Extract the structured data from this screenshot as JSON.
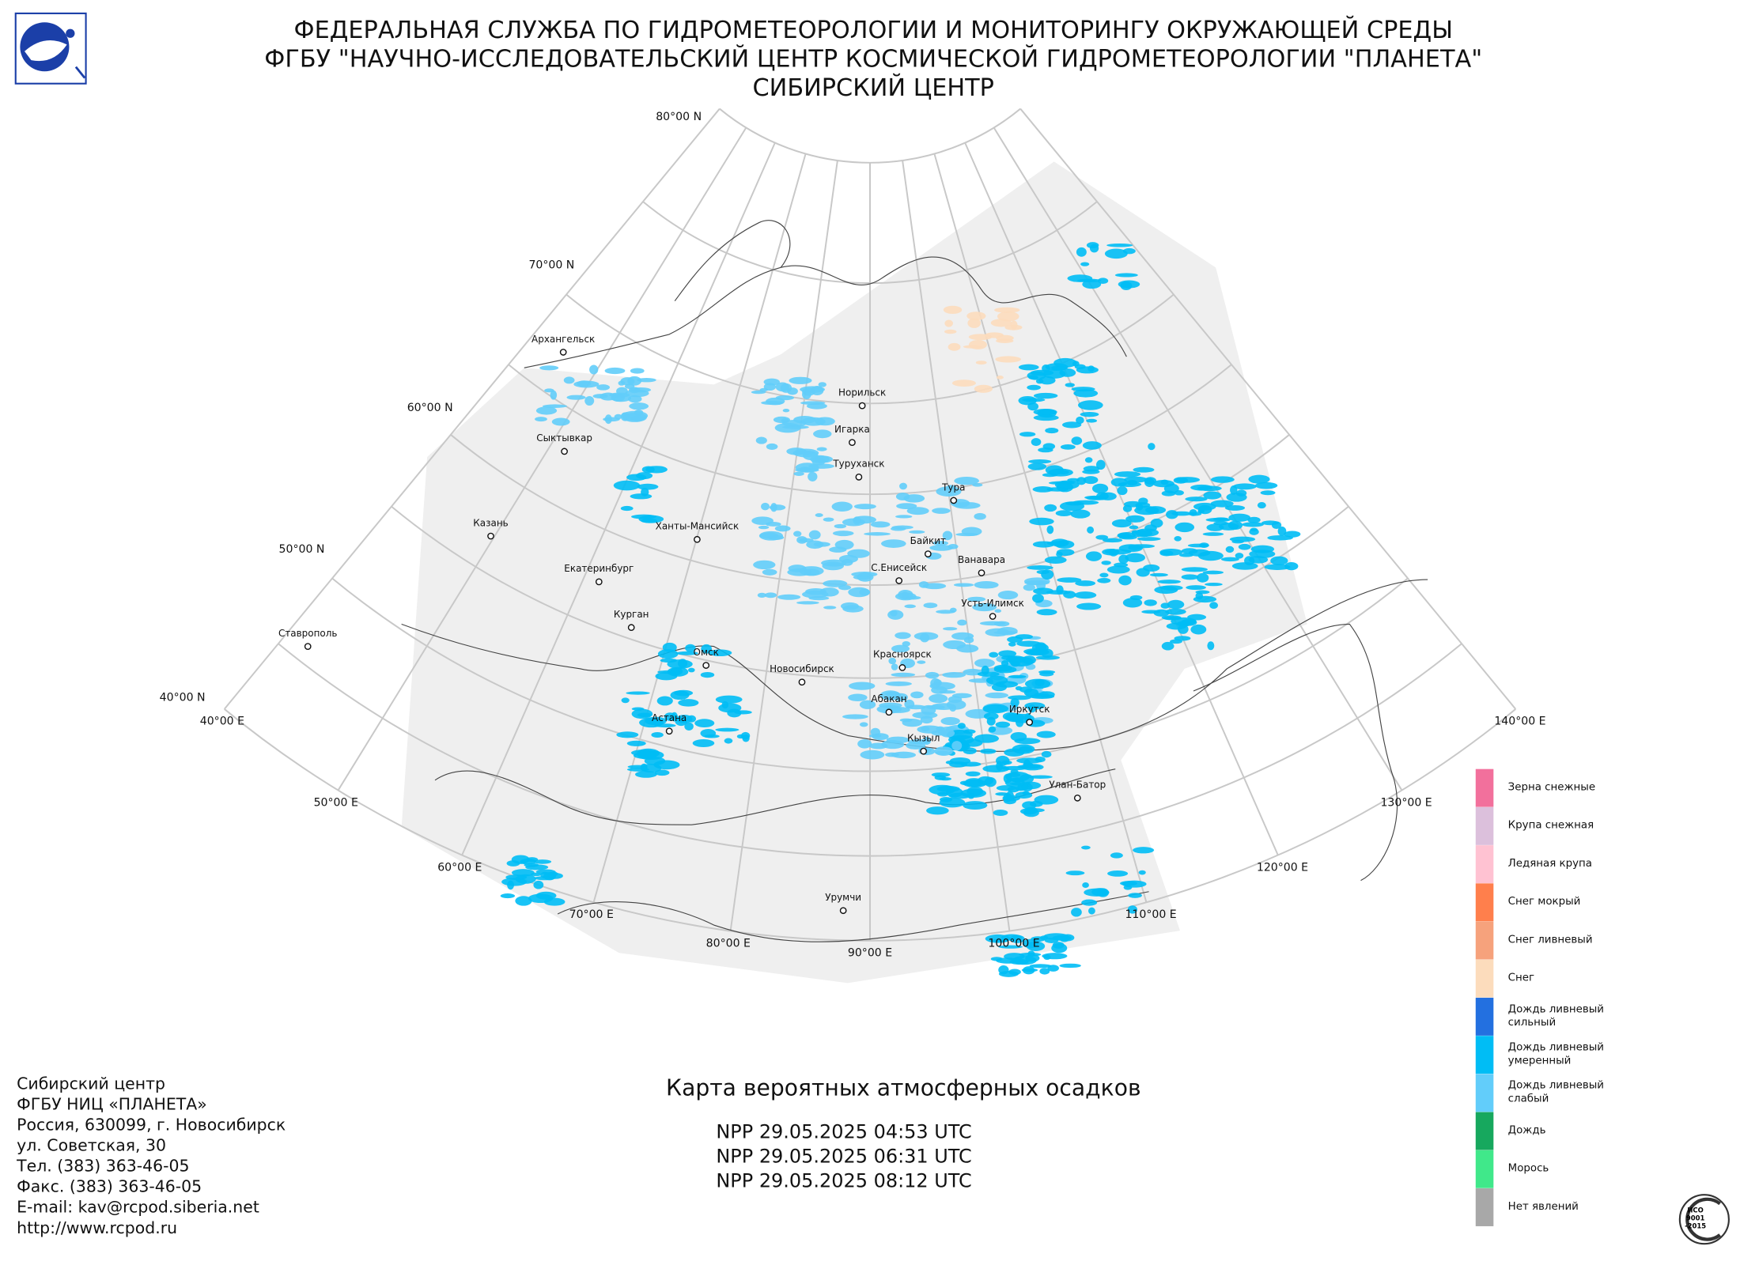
{
  "header": {
    "lines": [
      "ФЕДЕРАЛЬНАЯ СЛУЖБА ПО ГИДРОМЕТЕОРОЛОГИИ И МОНИТОРИНГУ ОКРУЖАЮЩЕЙ СРЕДЫ",
      "ФГБУ \"НАУЧНО-ИССЛЕДОВАТЕЛЬСКИЙ ЦЕНТР КОСМИЧЕСКОЙ ГИДРОМЕТЕОРОЛОГИИ \"ПЛАНЕТА\"",
      "СИБИРСКИЙ ЦЕНТР"
    ]
  },
  "map": {
    "lat_labels": [
      "80°00 N",
      "70°00 N",
      "60°00 N",
      "50°00 N",
      "40°00 N"
    ],
    "lon_labels": [
      "40°00 E",
      "50°00 E",
      "60°00 E",
      "70°00 E",
      "80°00 E",
      "90°00 E",
      "100°00 E",
      "110°00 E",
      "120°00 E",
      "130°00 E",
      "140°00 E"
    ],
    "cities": [
      "Архангельск",
      "Сыктывкар",
      "Казань",
      "Екатеринбург",
      "Курган",
      "Ставрополь",
      "Ханты-Мансийск",
      "Норильск",
      "Игарка",
      "Туруханск",
      "Тура",
      "Байкит",
      "Ванавара",
      "С.Енисейск",
      "Усть-Илимск",
      "Омск",
      "Новосибирск",
      "Красноярск",
      "Абакан",
      "Иркутск",
      "Кызыл",
      "Астана",
      "Улан-Батор",
      "Урумчи"
    ]
  },
  "legend": {
    "items": [
      {
        "label": [
          "Зерна снежные"
        ],
        "color": "#f2709c"
      },
      {
        "label": [
          "Крупа снежная"
        ],
        "color": "#dcc0dc"
      },
      {
        "label": [
          "Ледяная крупа"
        ],
        "color": "#ffc2d2"
      },
      {
        "label": [
          "Снег мокрый"
        ],
        "color": "#ff7f4c"
      },
      {
        "label": [
          "Снег ливневый"
        ],
        "color": "#f6a27c"
      },
      {
        "label": [
          "Снег"
        ],
        "color": "#fcdcbc"
      },
      {
        "label": [
          "Дождь ливневый",
          "сильный"
        ],
        "color": "#2370e0"
      },
      {
        "label": [
          "Дождь ливневый",
          "умеренный"
        ],
        "color": "#00bdf5"
      },
      {
        "label": [
          "Дождь ливневый",
          "слабый"
        ],
        "color": "#62cdfa"
      },
      {
        "label": [
          "Дождь"
        ],
        "color": "#17a85e"
      },
      {
        "label": [
          "Морось"
        ],
        "color": "#40e88a"
      },
      {
        "label": [
          "Нет явлений"
        ],
        "color": "#a8a8a8"
      }
    ]
  },
  "title": "Карта вероятных атмосферных осадков",
  "passes": [
    "NPP 29.05.2025  04:53 UTC",
    "NPP 29.05.2025  06:31 UTC",
    "NPP 29.05.2025  08:12 UTC"
  ],
  "contacts": [
    "Сибирский центр",
    "ФГБУ НИЦ «ПЛАНЕТА»",
    "Россия, 630099, г. Новосибирск",
    "ул. Советская, 30",
    "Тел. (383) 363-46-05",
    "Факс. (383) 363-46-05",
    "E-mail: kav@rcpod.siberia.net",
    "http://www.rcpod.ru"
  ],
  "iso": [
    "ИСО",
    "9001",
    "-2015"
  ]
}
